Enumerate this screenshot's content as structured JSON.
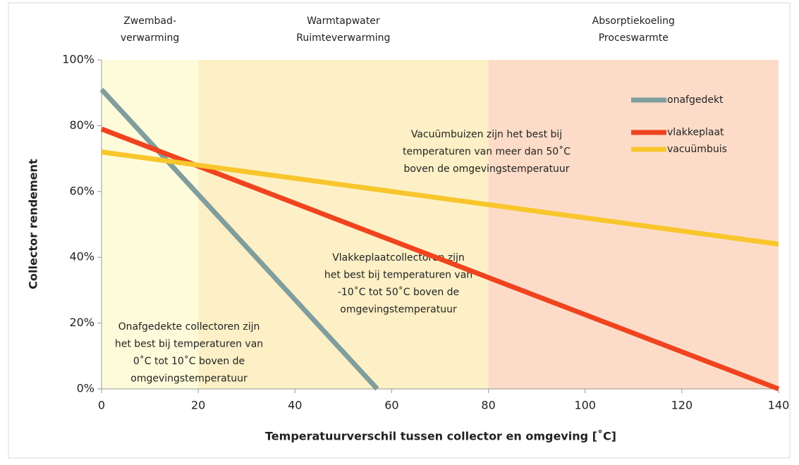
{
  "chart_data": {
    "type": "line",
    "xlabel": "Temperatuurverschil tussen collector en omgeving [˚C]",
    "ylabel": "Collector rendement",
    "xlim": [
      0,
      140
    ],
    "ylim": [
      0,
      100
    ],
    "xticks": [
      0,
      20,
      40,
      60,
      80,
      100,
      120,
      140
    ],
    "yticks": [
      {
        "value": 0,
        "label": "0%"
      },
      {
        "value": 20,
        "label": "20%"
      },
      {
        "value": 40,
        "label": "40%"
      },
      {
        "value": 60,
        "label": "60%"
      },
      {
        "value": 80,
        "label": "80%"
      },
      {
        "value": 100,
        "label": "100%"
      }
    ],
    "bands": [
      {
        "from": 0,
        "to": 20,
        "label": [
          "Zwembad-",
          "verwarming"
        ],
        "color": "#fefbdb"
      },
      {
        "from": 20,
        "to": 80,
        "label": [
          "Warmtapwater",
          "Ruimteverwarming"
        ],
        "color": "#fdf0c6"
      },
      {
        "from": 80,
        "to": 140,
        "label": [
          "Absorptiekoeling",
          "Proceswarmte"
        ],
        "color": "#fcdcc8"
      }
    ],
    "series": [
      {
        "name": "onafgedekt",
        "color": "#7f9e9d",
        "x": [
          0,
          57
        ],
        "values": [
          91,
          0
        ]
      },
      {
        "name": "vlakkeplaat",
        "color": "#f0431f",
        "x": [
          0,
          140
        ],
        "values": [
          79,
          0
        ]
      },
      {
        "name": "vacuümbuis",
        "color": "#f8c62c",
        "x": [
          0,
          140
        ],
        "values": [
          72,
          44
        ]
      }
    ],
    "annotations": [
      [
        "Vacuümbuizen zijn het best bij",
        "temperaturen van meer dan 50˚C",
        "boven de omgevingstemperatuur"
      ],
      [
        "Vlakkeplaatcollectoren zijn",
        "het best bij temperaturen van",
        "-10˚C tot 50˚C boven de",
        "omgevingstemperatuur"
      ],
      [
        "Onafgedekte collectoren zijn",
        "het best bij temperaturen van",
        "0˚C tot 10˚C boven de",
        "omgevingstemperatuur"
      ]
    ],
    "legend": "upper right"
  }
}
